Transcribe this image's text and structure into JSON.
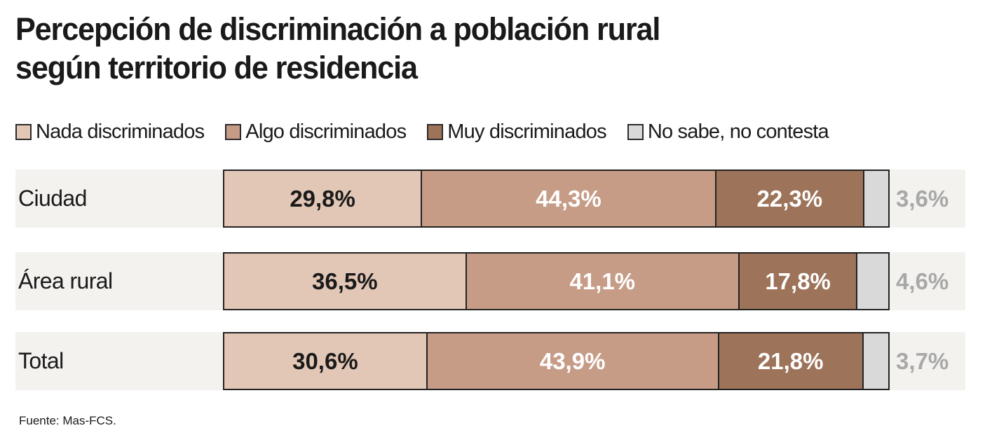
{
  "chart_data": {
    "type": "bar",
    "orientation": "horizontal",
    "stacked": true,
    "normalized": true,
    "title": "Percepción de discriminación a población rural según territorio de residencia",
    "title_lines": [
      "Percepción de discriminación a población rural",
      "según territorio de residencia"
    ],
    "categories": [
      "Ciudad",
      "Área rural",
      "Total"
    ],
    "series": [
      {
        "name": "Nada discriminados",
        "color": "#e2c7b6",
        "text_color": "#1a1a1a",
        "values": [
          29.8,
          36.5,
          30.6
        ],
        "labels": [
          "29,8%",
          "36,5%",
          "30,6%"
        ]
      },
      {
        "name": "Algo discriminados",
        "color": "#c69c87",
        "text_color": "#ffffff",
        "values": [
          44.3,
          41.1,
          43.9
        ],
        "labels": [
          "44,3%",
          "41,1%",
          "43,9%"
        ]
      },
      {
        "name": "Muy discriminados",
        "color": "#9d735a",
        "text_color": "#ffffff",
        "values": [
          22.3,
          17.8,
          21.8
        ],
        "labels": [
          "22,3%",
          "17,8%",
          "21,8%"
        ]
      },
      {
        "name": "No sabe, no contesta",
        "color": "#d9d9d9",
        "text_color": "#a8a8a8",
        "values": [
          3.6,
          4.6,
          3.7
        ],
        "labels": [
          "3,6%",
          "4,6%",
          "3,7%"
        ],
        "label_position": "outside"
      }
    ],
    "xlim": [
      0,
      100
    ],
    "legend": "top",
    "grid": false,
    "xlabel": "",
    "ylabel": "",
    "source": "Fuente: Mas-FCS."
  }
}
